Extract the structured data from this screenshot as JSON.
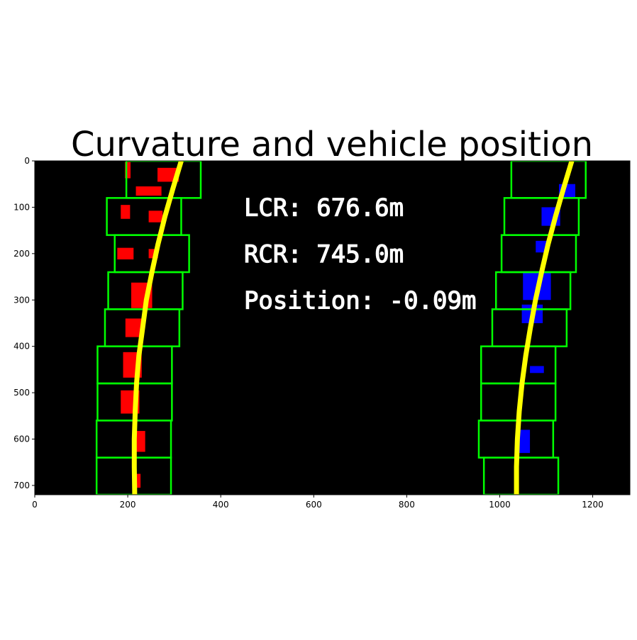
{
  "chart_data": {
    "type": "scatter",
    "title": "Curvature and vehicle position",
    "xlabel": "",
    "ylabel": "",
    "xlim": [
      0,
      1280
    ],
    "ylim": [
      720,
      0
    ],
    "xticks": [
      0,
      200,
      400,
      600,
      800,
      1000,
      1200
    ],
    "yticks": [
      0,
      100,
      200,
      300,
      400,
      500,
      600,
      700
    ],
    "background_color": "#000000",
    "annotations": [
      {
        "text": "LCR: 676.6m",
        "x": 450,
        "y": 100
      },
      {
        "text": "RCR: 745.0m",
        "x": 450,
        "y": 200
      },
      {
        "text": "Position: -0.09m",
        "x": 450,
        "y": 300
      }
    ],
    "colors": {
      "left_lane_pixels": "#ff0000",
      "right_lane_pixels": "#0000ff",
      "fit_line": "#ffff00",
      "window": "#00ff00"
    },
    "left_windows": [
      {
        "x1": 197,
        "x2": 357,
        "y1": 0,
        "y2": 80
      },
      {
        "x1": 155,
        "x2": 315,
        "y1": 80,
        "y2": 160
      },
      {
        "x1": 172,
        "x2": 332,
        "y1": 160,
        "y2": 240
      },
      {
        "x1": 158,
        "x2": 318,
        "y1": 240,
        "y2": 320
      },
      {
        "x1": 151,
        "x2": 311,
        "y1": 320,
        "y2": 400
      },
      {
        "x1": 135,
        "x2": 295,
        "y1": 400,
        "y2": 480
      },
      {
        "x1": 135,
        "x2": 295,
        "y1": 480,
        "y2": 560
      },
      {
        "x1": 133,
        "x2": 293,
        "y1": 560,
        "y2": 640
      },
      {
        "x1": 133,
        "x2": 293,
        "y1": 640,
        "y2": 720
      }
    ],
    "right_windows": [
      {
        "x1": 1025,
        "x2": 1185,
        "y1": 0,
        "y2": 80
      },
      {
        "x1": 1010,
        "x2": 1170,
        "y1": 80,
        "y2": 160
      },
      {
        "x1": 1004,
        "x2": 1164,
        "y1": 160,
        "y2": 240
      },
      {
        "x1": 992,
        "x2": 1152,
        "y1": 240,
        "y2": 320
      },
      {
        "x1": 984,
        "x2": 1144,
        "y1": 320,
        "y2": 400
      },
      {
        "x1": 960,
        "x2": 1120,
        "y1": 400,
        "y2": 480
      },
      {
        "x1": 960,
        "x2": 1120,
        "y1": 480,
        "y2": 560
      },
      {
        "x1": 955,
        "x2": 1115,
        "y1": 560,
        "y2": 640
      },
      {
        "x1": 966,
        "x2": 1126,
        "y1": 640,
        "y2": 720
      }
    ],
    "left_fit_points": [
      {
        "x": 315,
        "y": 0
      },
      {
        "x": 297,
        "y": 60
      },
      {
        "x": 280,
        "y": 120
      },
      {
        "x": 265,
        "y": 180
      },
      {
        "x": 252,
        "y": 240
      },
      {
        "x": 240,
        "y": 300
      },
      {
        "x": 232,
        "y": 360
      },
      {
        "x": 224,
        "y": 420
      },
      {
        "x": 219,
        "y": 480
      },
      {
        "x": 216,
        "y": 540
      },
      {
        "x": 214,
        "y": 600
      },
      {
        "x": 214,
        "y": 660
      },
      {
        "x": 215,
        "y": 720
      }
    ],
    "right_fit_points": [
      {
        "x": 1155,
        "y": 0
      },
      {
        "x": 1137,
        "y": 60
      },
      {
        "x": 1120,
        "y": 120
      },
      {
        "x": 1104,
        "y": 180
      },
      {
        "x": 1090,
        "y": 240
      },
      {
        "x": 1077,
        "y": 300
      },
      {
        "x": 1066,
        "y": 360
      },
      {
        "x": 1056,
        "y": 420
      },
      {
        "x": 1048,
        "y": 480
      },
      {
        "x": 1042,
        "y": 540
      },
      {
        "x": 1038,
        "y": 600
      },
      {
        "x": 1036,
        "y": 660
      },
      {
        "x": 1036,
        "y": 720
      }
    ],
    "left_pixel_clusters": [
      {
        "x": 287,
        "y": 30,
        "w": 46,
        "h": 30
      },
      {
        "x": 245,
        "y": 65,
        "w": 55,
        "h": 20
      },
      {
        "x": 200,
        "y": 20,
        "w": 12,
        "h": 35
      },
      {
        "x": 195,
        "y": 110,
        "w": 20,
        "h": 30
      },
      {
        "x": 260,
        "y": 120,
        "w": 30,
        "h": 25
      },
      {
        "x": 195,
        "y": 200,
        "w": 35,
        "h": 25
      },
      {
        "x": 255,
        "y": 200,
        "w": 20,
        "h": 20
      },
      {
        "x": 230,
        "y": 290,
        "w": 45,
        "h": 55
      },
      {
        "x": 215,
        "y": 360,
        "w": 40,
        "h": 40
      },
      {
        "x": 210,
        "y": 440,
        "w": 40,
        "h": 55
      },
      {
        "x": 205,
        "y": 520,
        "w": 40,
        "h": 50
      },
      {
        "x": 225,
        "y": 605,
        "w": 25,
        "h": 45
      },
      {
        "x": 220,
        "y": 690,
        "w": 15,
        "h": 30
      }
    ],
    "right_pixel_clusters": [
      {
        "x": 1145,
        "y": 65,
        "w": 35,
        "h": 30
      },
      {
        "x": 1110,
        "y": 120,
        "w": 40,
        "h": 40
      },
      {
        "x": 1090,
        "y": 185,
        "w": 25,
        "h": 25
      },
      {
        "x": 1080,
        "y": 270,
        "w": 60,
        "h": 60
      },
      {
        "x": 1070,
        "y": 330,
        "w": 45,
        "h": 40
      },
      {
        "x": 1080,
        "y": 450,
        "w": 30,
        "h": 15
      },
      {
        "x": 1050,
        "y": 605,
        "w": 30,
        "h": 50
      }
    ]
  }
}
